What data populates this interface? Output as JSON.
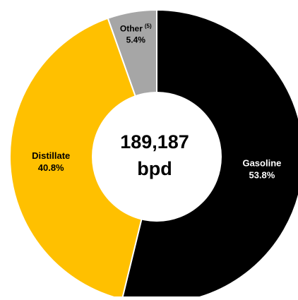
{
  "chart_data": {
    "type": "pie",
    "subtype": "donut",
    "categories": [
      "Gasoline",
      "Distillate",
      "Other"
    ],
    "values": [
      53.8,
      40.8,
      5.4
    ],
    "unit": "%",
    "slices": [
      {
        "name": "Gasoline",
        "label": "Gasoline",
        "value": 53.8,
        "value_label": "53.8%",
        "superscript": "",
        "color": "#000000",
        "label_color": "#ffffff"
      },
      {
        "name": "Distillate",
        "label": "Distillate",
        "value": 40.8,
        "value_label": "40.8%",
        "superscript": "",
        "color": "#FFC000",
        "label_color": "#000000"
      },
      {
        "name": "Other",
        "label": "Other",
        "value": 5.4,
        "value_label": "5.4%",
        "superscript": "(5)",
        "color": "#A6A6A6",
        "label_color": "#000000"
      }
    ],
    "center_label": {
      "line1": "189,187",
      "line2": "bpd"
    },
    "start_angle_deg": 0,
    "direction": "clockwise",
    "separator_color": "#ffffff"
  }
}
